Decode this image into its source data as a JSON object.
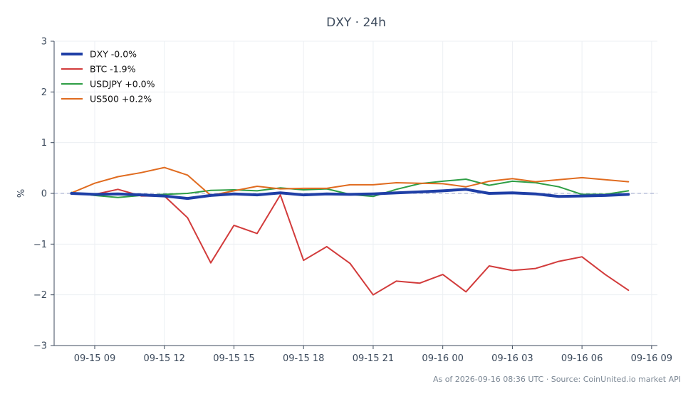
{
  "chart_data": {
    "type": "line",
    "title": "DXY · 24h",
    "ylabel": "%",
    "xlabel": "",
    "ylim": [
      -3,
      3
    ],
    "yticks": [
      -3,
      -2,
      -1,
      0,
      1,
      2,
      3
    ],
    "ytick_labels": [
      "−3",
      "−2",
      "−1",
      "0",
      "1",
      "2",
      "3"
    ],
    "xlim": [
      "2026-09-15T07:15",
      "2026-09-16T09:15"
    ],
    "xticks": [
      "2026-09-15T09:00",
      "2026-09-15T12:00",
      "2026-09-15T15:00",
      "2026-09-15T18:00",
      "2026-09-15T21:00",
      "2026-09-16T00:00",
      "2026-09-16T03:00",
      "2026-09-16T06:00",
      "2026-09-16T09:00"
    ],
    "xtick_labels": [
      "09-15 09",
      "09-15 12",
      "09-15 15",
      "09-15 18",
      "09-15 21",
      "09-16 00",
      "09-16 03",
      "09-16 06",
      "09-16 09"
    ],
    "x": [
      "2026-09-15T08:00",
      "2026-09-15T09:00",
      "2026-09-15T10:00",
      "2026-09-15T11:00",
      "2026-09-15T12:00",
      "2026-09-15T13:00",
      "2026-09-15T14:00",
      "2026-09-15T15:00",
      "2026-09-15T16:00",
      "2026-09-15T17:00",
      "2026-09-15T18:00",
      "2026-09-15T19:00",
      "2026-09-15T20:00",
      "2026-09-15T21:00",
      "2026-09-15T22:00",
      "2026-09-15T23:00",
      "2026-09-16T00:00",
      "2026-09-16T01:00",
      "2026-09-16T02:00",
      "2026-09-16T03:00",
      "2026-09-16T04:00",
      "2026-09-16T05:00",
      "2026-09-16T06:00",
      "2026-09-16T07:00",
      "2026-09-16T08:00"
    ],
    "series": [
      {
        "name": "DXY -0.0%",
        "color": "#1f3fa6",
        "width": 4,
        "values": [
          0.0,
          -0.02,
          -0.01,
          -0.03,
          -0.05,
          -0.1,
          -0.04,
          -0.01,
          -0.03,
          0.01,
          -0.03,
          -0.01,
          -0.02,
          -0.01,
          0.01,
          0.03,
          0.05,
          0.08,
          0.0,
          0.01,
          -0.01,
          -0.06,
          -0.05,
          -0.04,
          -0.02
        ]
      },
      {
        "name": "BTC -1.9%",
        "color": "#d23b3b",
        "width": 2,
        "values": [
          0.0,
          -0.02,
          0.08,
          -0.05,
          -0.05,
          -0.48,
          -1.37,
          -0.63,
          -0.79,
          -0.03,
          -1.32,
          -1.05,
          -1.38,
          -2.0,
          -1.73,
          -1.77,
          -1.6,
          -1.94,
          -1.43,
          -1.52,
          -1.48,
          -1.34,
          -1.25,
          -1.6,
          -1.91
        ]
      },
      {
        "name": "USDJPY +0.0%",
        "color": "#2e9e45",
        "width": 2,
        "values": [
          0.02,
          -0.04,
          -0.08,
          -0.04,
          -0.02,
          0.0,
          0.06,
          0.07,
          0.05,
          0.11,
          0.07,
          0.09,
          -0.02,
          -0.06,
          0.08,
          0.19,
          0.24,
          0.28,
          0.16,
          0.24,
          0.21,
          0.13,
          -0.02,
          -0.02,
          0.05
        ]
      },
      {
        "name": "US500 +0.2%",
        "color": "#e06b1f",
        "width": 2,
        "values": [
          0.01,
          0.2,
          0.33,
          0.41,
          0.51,
          0.36,
          -0.04,
          0.05,
          0.14,
          0.09,
          0.1,
          0.1,
          0.17,
          0.17,
          0.21,
          0.2,
          0.19,
          0.13,
          0.24,
          0.29,
          0.23,
          0.27,
          0.31,
          0.27,
          0.23
        ]
      }
    ],
    "legend_position": "top-left",
    "grid": true,
    "zero_line": true
  },
  "footer": "As of 2026-09-16 08:36 UTC · Source: CoinUnited.io market API"
}
